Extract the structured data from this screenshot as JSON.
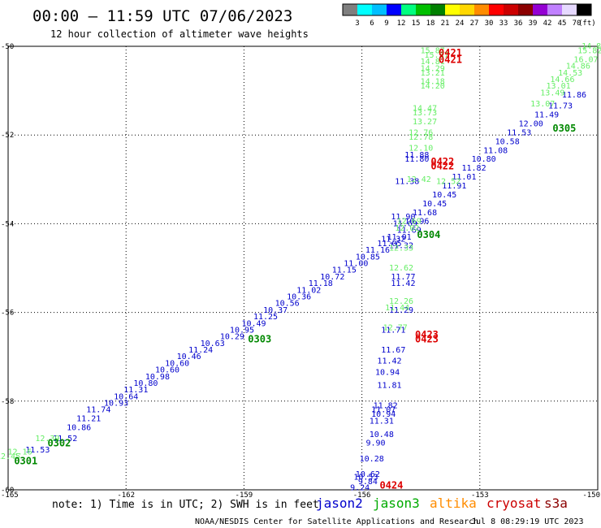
{
  "chart_data": {
    "type": "scatter",
    "title": "00:00 – 11:59 UTC 07/06/2023",
    "subtitle": "12 hour collection of altimeter wave heights",
    "note": "note:  1) Time is in UTC; 2) SWH is in feet",
    "credit": "NOAA/NESDIS Center for Satellite Applications and Research",
    "timestamp": "Jul  8 08:29:19 UTC 2023",
    "xlim": [
      -165,
      -150
    ],
    "ylim": [
      -60,
      -50
    ],
    "x_ticks": [
      -165,
      -162,
      -159,
      -156,
      -153,
      -150
    ],
    "y_ticks": [
      -50,
      -52,
      -54,
      -56,
      -58,
      -60
    ],
    "x_tick_labels": [
      "-165",
      "-162",
      "-159",
      "-156",
      "-153",
      "-150"
    ],
    "y_tick_labels": [
      "-50",
      "-52",
      "-54",
      "-56",
      "-58",
      "-60"
    ],
    "grid": true,
    "colorbar": {
      "labels": [
        "3",
        "6",
        "9",
        "12",
        "15",
        "18",
        "21",
        "24",
        "27",
        "30",
        "33",
        "36",
        "39",
        "42",
        "45",
        "70"
      ],
      "unit": "(ft)",
      "colors": [
        "#7f7f7f",
        "#00ffff",
        "#00bfff",
        "#0000ff",
        "#00ff7f",
        "#00c000",
        "#008000",
        "#ffff00",
        "#ffd700",
        "#ff8c00",
        "#ff0000",
        "#cc0000",
        "#8b0000",
        "#9400d3",
        "#c080ff",
        "#e6d9ff",
        "#000000"
      ]
    },
    "legend": [
      {
        "name": "jason2",
        "color": "#0000cc"
      },
      {
        "name": "jason3",
        "color": "#00aa00"
      },
      {
        "name": "altika",
        "color": "#ff8c00"
      },
      {
        "name": "cryosat",
        "color": "#cc0000"
      },
      {
        "name": "s3a",
        "color": "#8b0000"
      }
    ],
    "series": [
      {
        "color": "#0000cc",
        "points": [
          {
            "x": -164.25,
            "y": -59.1,
            "label": "11.53"
          },
          {
            "x": -163.55,
            "y": -58.85,
            "label": "11.52"
          },
          {
            "x": -163.2,
            "y": -58.6,
            "label": "10.86"
          },
          {
            "x": -162.95,
            "y": -58.4,
            "label": "11.21"
          },
          {
            "x": -162.7,
            "y": -58.2,
            "label": "11.74"
          },
          {
            "x": -162.25,
            "y": -58.05,
            "label": "10.93"
          },
          {
            "x": -162.0,
            "y": -57.9,
            "label": "10.64"
          },
          {
            "x": -161.75,
            "y": -57.75,
            "label": "11.31"
          },
          {
            "x": -161.5,
            "y": -57.6,
            "label": "10.80"
          },
          {
            "x": -161.2,
            "y": -57.45,
            "label": "10.98"
          },
          {
            "x": -160.95,
            "y": -57.3,
            "label": "10.60"
          },
          {
            "x": -160.7,
            "y": -57.15,
            "label": "10.60"
          },
          {
            "x": -160.4,
            "y": -57.0,
            "label": "10.46"
          },
          {
            "x": -160.1,
            "y": -56.85,
            "label": "11.24"
          },
          {
            "x": -159.8,
            "y": -56.7,
            "label": "10.63"
          },
          {
            "x": -159.3,
            "y": -56.55,
            "label": "10.29"
          },
          {
            "x": -159.05,
            "y": -56.4,
            "label": "10.95"
          },
          {
            "x": -158.75,
            "y": -56.25,
            "label": "10.49"
          },
          {
            "x": -158.45,
            "y": -56.1,
            "label": "11.25"
          },
          {
            "x": -158.2,
            "y": -55.95,
            "label": "10.37"
          },
          {
            "x": -157.9,
            "y": -55.8,
            "label": "10.56"
          },
          {
            "x": -157.6,
            "y": -55.65,
            "label": "10.36"
          },
          {
            "x": -157.35,
            "y": -55.5,
            "label": "11.02"
          },
          {
            "x": -157.05,
            "y": -55.35,
            "label": "11.18"
          },
          {
            "x": -156.75,
            "y": -55.2,
            "label": "10.72"
          },
          {
            "x": -156.45,
            "y": -55.05,
            "label": "11.15"
          },
          {
            "x": -156.15,
            "y": -54.9,
            "label": "11.00"
          },
          {
            "x": -155.85,
            "y": -54.75,
            "label": "10.85"
          },
          {
            "x": -155.6,
            "y": -54.6,
            "label": "11.16"
          },
          {
            "x": -155.3,
            "y": -54.45,
            "label": "11.05"
          },
          {
            "x": -155.05,
            "y": -54.3,
            "label": "11.01"
          },
          {
            "x": -154.8,
            "y": -54.15,
            "label": "11.69"
          },
          {
            "x": -154.6,
            "y": -53.95,
            "label": "10.96"
          },
          {
            "x": -154.4,
            "y": -53.75,
            "label": "11.68"
          },
          {
            "x": -154.15,
            "y": -53.55,
            "label": "10.45"
          },
          {
            "x": -153.9,
            "y": -53.35,
            "label": "10.45"
          },
          {
            "x": -153.65,
            "y": -53.15,
            "label": "11.91"
          },
          {
            "x": -153.4,
            "y": -52.95,
            "label": "11.01"
          },
          {
            "x": -153.15,
            "y": -52.75,
            "label": "11.82"
          },
          {
            "x": -152.9,
            "y": -52.55,
            "label": "10.80"
          },
          {
            "x": -152.6,
            "y": -52.35,
            "label": "11.08"
          },
          {
            "x": -152.3,
            "y": -52.15,
            "label": "10.58"
          },
          {
            "x": -152.0,
            "y": -51.95,
            "label": "11.53"
          },
          {
            "x": -151.7,
            "y": -51.75,
            "label": "12.00"
          },
          {
            "x": -151.3,
            "y": -51.55,
            "label": "11.49"
          },
          {
            "x": -150.95,
            "y": -51.35,
            "label": "11.73"
          },
          {
            "x": -150.6,
            "y": -51.1,
            "label": "11.86"
          },
          {
            "x": -154.6,
            "y": -52.45,
            "label": "11.88"
          },
          {
            "x": -154.6,
            "y": -52.55,
            "label": "11.80"
          },
          {
            "x": -154.85,
            "y": -53.05,
            "label": "11.38"
          },
          {
            "x": -154.95,
            "y": -53.85,
            "label": "11.90"
          },
          {
            "x": -154.9,
            "y": -54.0,
            "label": "11.69"
          },
          {
            "x": -155.2,
            "y": -54.35,
            "label": "11.32"
          },
          {
            "x": -155.0,
            "y": -54.5,
            "label": "11.32"
          },
          {
            "x": -154.95,
            "y": -55.2,
            "label": "11.77"
          },
          {
            "x": -154.95,
            "y": -55.35,
            "label": "11.42"
          },
          {
            "x": -155.0,
            "y": -55.95,
            "label": "11.29"
          },
          {
            "x": -155.2,
            "y": -56.4,
            "label": "11.71"
          },
          {
            "x": -155.2,
            "y": -56.85,
            "label": "11.67"
          },
          {
            "x": -155.3,
            "y": -57.1,
            "label": "11.42"
          },
          {
            "x": -155.35,
            "y": -57.35,
            "label": "10.94"
          },
          {
            "x": -155.3,
            "y": -57.65,
            "label": "11.81"
          },
          {
            "x": -155.4,
            "y": -58.1,
            "label": "11.82"
          },
          {
            "x": -155.45,
            "y": -58.2,
            "label": "11.07"
          },
          {
            "x": -155.45,
            "y": -58.3,
            "label": "10.94"
          },
          {
            "x": -155.5,
            "y": -58.45,
            "label": "11.31"
          },
          {
            "x": -155.5,
            "y": -58.75,
            "label": "10.48"
          },
          {
            "x": -155.65,
            "y": -58.95,
            "label": "9.90"
          },
          {
            "x": -155.75,
            "y": -59.3,
            "label": "10.28"
          },
          {
            "x": -155.85,
            "y": -59.65,
            "label": "10.62"
          },
          {
            "x": -155.9,
            "y": -59.72,
            "label": "10.53"
          },
          {
            "x": -155.85,
            "y": -59.82,
            "label": "9.84"
          },
          {
            "x": -156.05,
            "y": -59.95,
            "label": "9.24"
          }
        ]
      },
      {
        "color": "#66ee66",
        "points": [
          {
            "x": -165.0,
            "y": -59.25,
            "label": "12.45"
          },
          {
            "x": -164.7,
            "y": -59.15,
            "label": "12.16"
          },
          {
            "x": -164.0,
            "y": -58.85,
            "label": "12.39"
          },
          {
            "x": -154.2,
            "y": -50.1,
            "label": "15.87"
          },
          {
            "x": -154.1,
            "y": -50.2,
            "label": "15.37"
          },
          {
            "x": -154.2,
            "y": -50.35,
            "label": "14.81"
          },
          {
            "x": -154.2,
            "y": -50.5,
            "label": "14.29"
          },
          {
            "x": -154.2,
            "y": -50.6,
            "label": "13.21"
          },
          {
            "x": -154.2,
            "y": -50.8,
            "label": "14.18"
          },
          {
            "x": -154.2,
            "y": -50.9,
            "label": "14.20"
          },
          {
            "x": -154.4,
            "y": -51.4,
            "label": "14.47"
          },
          {
            "x": -154.4,
            "y": -51.5,
            "label": "13.73"
          },
          {
            "x": -154.4,
            "y": -51.7,
            "label": "13.27"
          },
          {
            "x": -154.5,
            "y": -51.95,
            "label": "12.76"
          },
          {
            "x": -154.5,
            "y": -52.05,
            "label": "12.78"
          },
          {
            "x": -154.5,
            "y": -52.3,
            "label": "12.10"
          },
          {
            "x": -154.55,
            "y": -53.0,
            "label": "12.42"
          },
          {
            "x": -153.8,
            "y": -53.05,
            "label": "12.52"
          },
          {
            "x": -154.8,
            "y": -53.95,
            "label": "12.69"
          },
          {
            "x": -154.85,
            "y": -54.1,
            "label": "12.02"
          },
          {
            "x": -155.0,
            "y": -54.55,
            "label": "12.33"
          },
          {
            "x": -155.0,
            "y": -55.0,
            "label": "12.62"
          },
          {
            "x": -155.0,
            "y": -55.75,
            "label": "12.26"
          },
          {
            "x": -155.1,
            "y": -55.9,
            "label": "11.44"
          },
          {
            "x": -155.15,
            "y": -56.35,
            "label": "12.77"
          },
          {
            "x": -150.1,
            "y": -50.0,
            "label": "14.84"
          },
          {
            "x": -150.2,
            "y": -50.1,
            "label": "15.82"
          },
          {
            "x": -150.3,
            "y": -50.3,
            "label": "16.07"
          },
          {
            "x": -150.5,
            "y": -50.45,
            "label": "14.86"
          },
          {
            "x": -150.7,
            "y": -50.6,
            "label": "14.53"
          },
          {
            "x": -150.9,
            "y": -50.75,
            "label": "14.66"
          },
          {
            "x": -151.0,
            "y": -50.9,
            "label": "13.01"
          },
          {
            "x": -151.15,
            "y": -51.05,
            "label": "13.49"
          },
          {
            "x": -151.4,
            "y": -51.3,
            "label": "13.07"
          }
        ]
      }
    ],
    "time_labels": [
      {
        "x": -164.55,
        "y": -59.35,
        "label": "0301",
        "color": "#008800"
      },
      {
        "x": -163.7,
        "y": -58.95,
        "label": "0302",
        "color": "#008800"
      },
      {
        "x": -158.6,
        "y": -56.6,
        "label": "0303",
        "color": "#008800"
      },
      {
        "x": -154.3,
        "y": -54.25,
        "label": "0304",
        "color": "#008800"
      },
      {
        "x": -150.85,
        "y": -51.85,
        "label": "0305",
        "color": "#008800"
      },
      {
        "x": -153.75,
        "y": -50.15,
        "label": "0421",
        "color": "#dd0000"
      },
      {
        "x": -153.75,
        "y": -50.3,
        "label": "0421",
        "color": "#dd0000"
      },
      {
        "x": -153.95,
        "y": -52.6,
        "label": "0422",
        "color": "#dd0000"
      },
      {
        "x": -153.95,
        "y": -52.7,
        "label": "0422",
        "color": "#dd0000"
      },
      {
        "x": -154.35,
        "y": -56.5,
        "label": "0423",
        "color": "#dd0000"
      },
      {
        "x": -154.35,
        "y": -56.6,
        "label": "0423",
        "color": "#dd0000"
      },
      {
        "x": -155.25,
        "y": -59.9,
        "label": "0424",
        "color": "#dd0000"
      }
    ]
  }
}
